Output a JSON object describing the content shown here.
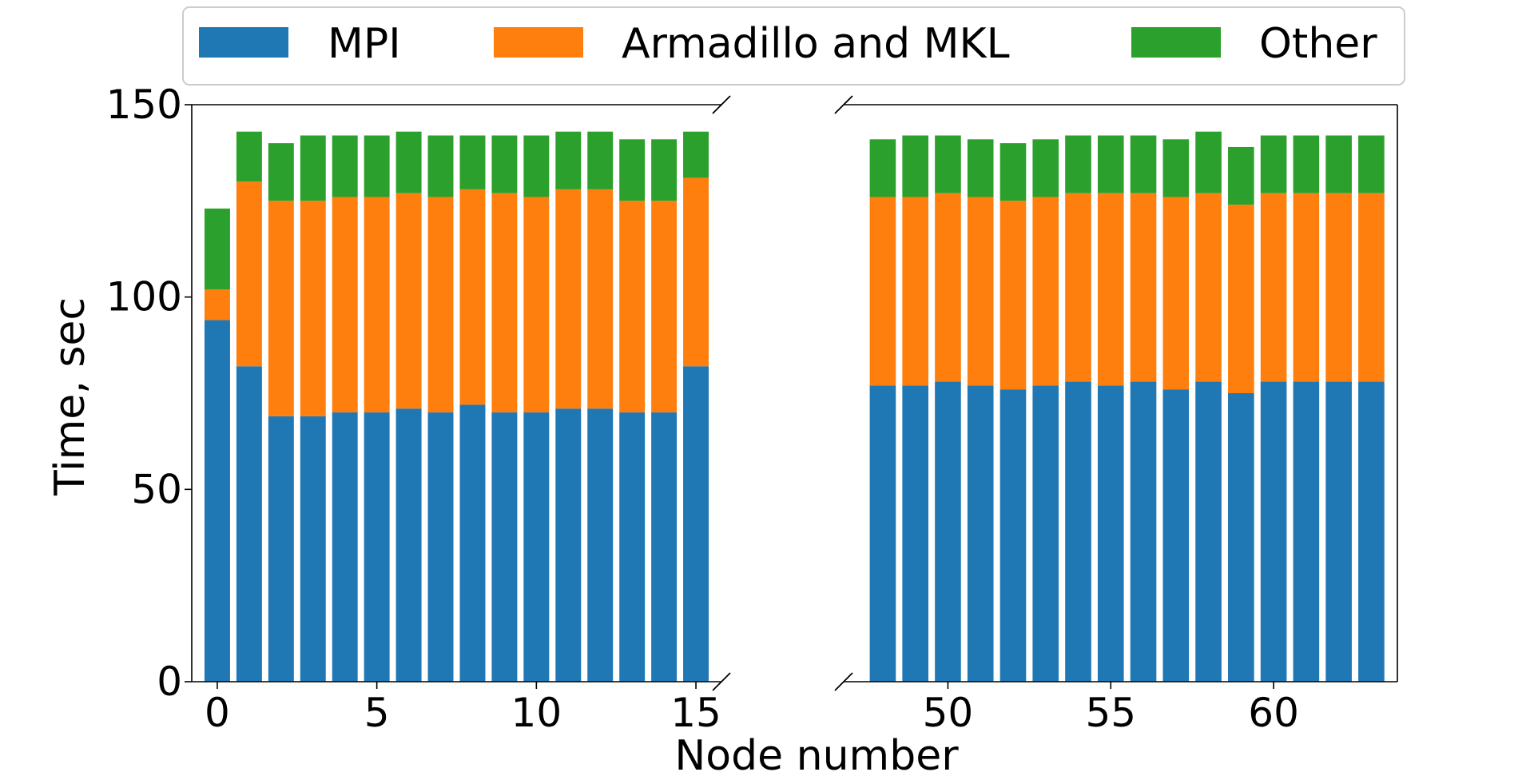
{
  "chart_data": {
    "type": "bar",
    "stacked": true,
    "xlabel": "Node number",
    "ylabel": "Time, sec",
    "ylim": [
      0,
      150
    ],
    "yticks": [
      0,
      50,
      100,
      150
    ],
    "broken_x_axis": true,
    "legend": {
      "placement": "top",
      "entries": [
        {
          "name": "MPI",
          "color": "#1f77b4"
        },
        {
          "name": "Armadillo and MKL",
          "color": "#ff7f0e"
        },
        {
          "name": "Other",
          "color": "#2ca02c"
        }
      ]
    },
    "panels": [
      {
        "xlim": [
          -0.8,
          15.8
        ],
        "xticks": [
          0,
          5,
          10,
          15
        ],
        "x": [
          0,
          1,
          2,
          3,
          4,
          5,
          6,
          7,
          8,
          9,
          10,
          11,
          12,
          13,
          14,
          15
        ],
        "series": [
          {
            "name": "MPI",
            "values": [
              94,
              82,
              69,
              69,
              70,
              70,
              71,
              70,
              72,
              70,
              70,
              71,
              71,
              70,
              70,
              82
            ]
          },
          {
            "name": "Armadillo and MKL",
            "values": [
              8,
              48,
              56,
              56,
              56,
              56,
              56,
              56,
              56,
              57,
              56,
              57,
              57,
              55,
              55,
              49
            ]
          },
          {
            "name": "Other",
            "values": [
              21,
              13,
              15,
              17,
              16,
              16,
              16,
              16,
              14,
              15,
              16,
              15,
              15,
              16,
              16,
              12
            ]
          }
        ]
      },
      {
        "xlim": [
          46.8,
          63.8
        ],
        "xticks": [
          50,
          55,
          60
        ],
        "x": [
          48,
          49,
          50,
          51,
          52,
          53,
          54,
          55,
          56,
          57,
          58,
          59,
          60,
          61,
          62,
          63
        ],
        "series": [
          {
            "name": "MPI",
            "values": [
              77,
              77,
              78,
              77,
              76,
              77,
              78,
              77,
              78,
              76,
              78,
              75,
              78,
              78,
              78,
              78
            ]
          },
          {
            "name": "Armadillo and MKL",
            "values": [
              49,
              49,
              49,
              49,
              49,
              49,
              49,
              50,
              49,
              50,
              49,
              49,
              49,
              49,
              49,
              49
            ]
          },
          {
            "name": "Other",
            "values": [
              15,
              16,
              15,
              15,
              15,
              15,
              15,
              15,
              15,
              15,
              16,
              15,
              15,
              15,
              15,
              15
            ]
          }
        ]
      }
    ]
  }
}
